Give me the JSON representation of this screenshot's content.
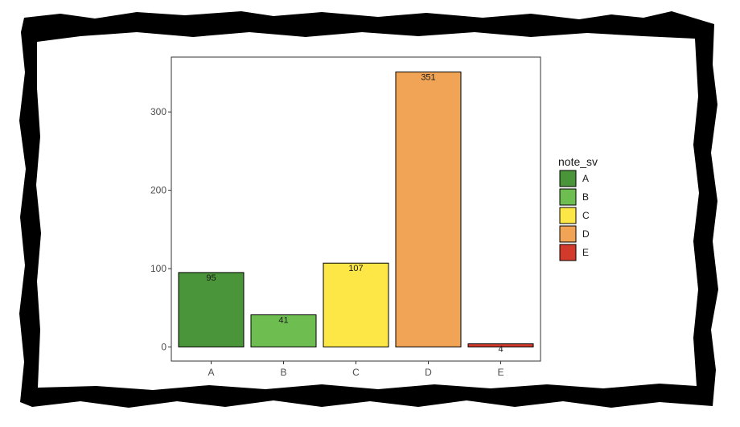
{
  "chart_data": {
    "type": "bar",
    "categories": [
      "A",
      "B",
      "C",
      "D",
      "E"
    ],
    "values": [
      95,
      41,
      107,
      351,
      4
    ],
    "data_labels": [
      "95",
      "41",
      "107",
      "351",
      "4"
    ],
    "colors": [
      "#4a953a",
      "#6dbd51",
      "#fce746",
      "#f1a455",
      "#d23a2c"
    ],
    "ylim": [
      -18,
      370
    ],
    "yticks": [
      0,
      100,
      200,
      300
    ],
    "ytick_labels": [
      "0",
      "100",
      "200",
      "300"
    ],
    "grid": false,
    "legend": {
      "title": "note_sv",
      "placement": "right",
      "items": [
        "A",
        "B",
        "C",
        "D",
        "E"
      ]
    },
    "title": "",
    "xlabel": "",
    "ylabel": ""
  }
}
